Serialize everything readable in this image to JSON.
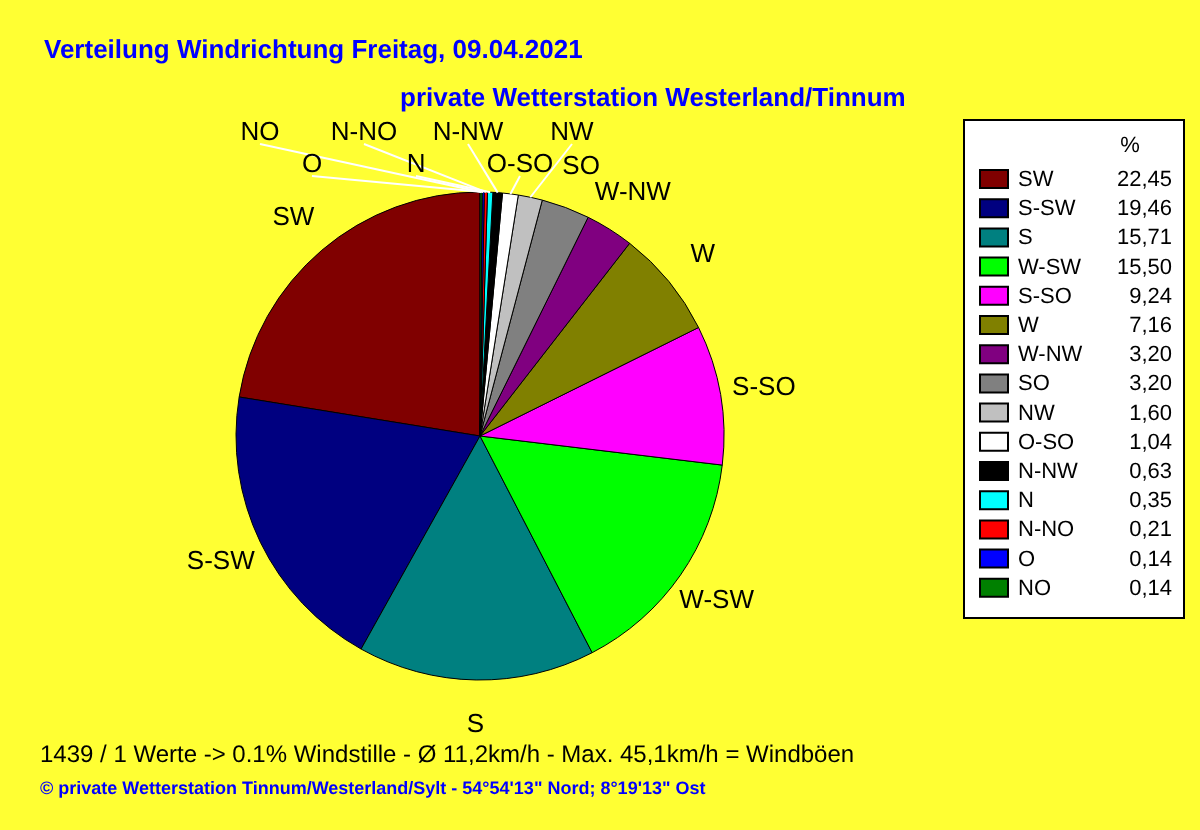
{
  "chart_data": {
    "type": "pie",
    "title": "Verteilung Windrichtung   Freitag, 09.04.2021",
    "subtitle": "private Wetterstation Westerland/Tinnum",
    "legend_title": "%",
    "legend": "right",
    "categories": [
      "SW",
      "S-SW",
      "S",
      "W-SW",
      "S-SO",
      "W",
      "W-NW",
      "SO",
      "NW",
      "O-SO",
      "N-NW",
      "N",
      "N-NO",
      "O",
      "NO"
    ],
    "values": [
      22.45,
      19.46,
      15.71,
      15.5,
      9.24,
      7.16,
      3.2,
      3.2,
      1.6,
      1.04,
      0.63,
      0.35,
      0.21,
      0.14,
      0.14
    ],
    "value_labels": [
      "22,45",
      "19,46",
      "15,71",
      "15,50",
      "9,24",
      "7,16",
      "3,20",
      "3,20",
      "1,60",
      "1,04",
      "0,63",
      "0,35",
      "0,21",
      "0,14",
      "0,14"
    ],
    "colors": [
      "#800000",
      "#000080",
      "#008080",
      "#00ff00",
      "#ff00ff",
      "#808000",
      "#800080",
      "#808080",
      "#c0c0c0",
      "#ffffff",
      "#000000",
      "#00ffff",
      "#ff0000",
      "#0000ff",
      "#008000"
    ],
    "annotations": [
      "1439 / 1 Werte  -> 0.1% Windstille   -   Ø 11,2km/h  -  Max. 45,1km/h = Windböen",
      "© private Wetterstation Tinnum/Westerland/Sylt  -  54°54'13\" Nord; 8°19'13\" Ost"
    ]
  }
}
